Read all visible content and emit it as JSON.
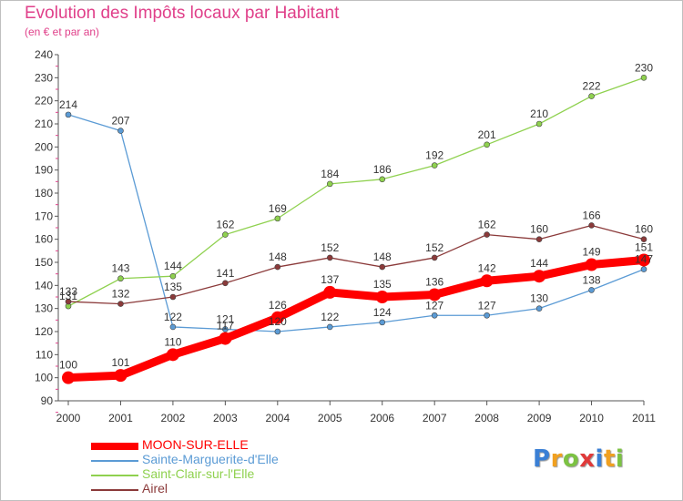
{
  "chart_data": {
    "type": "line",
    "title": "Evolution des Impôts locaux par Habitant",
    "subtitle": "(en € et par an)",
    "x": [
      "2000",
      "2001",
      "2002",
      "2003",
      "2004",
      "2005",
      "2006",
      "2007",
      "2008",
      "2009",
      "2010",
      "2011"
    ],
    "ylim": [
      90,
      240
    ],
    "yticks": [
      90,
      100,
      110,
      120,
      130,
      140,
      150,
      160,
      170,
      180,
      190,
      200,
      210,
      220,
      230,
      240
    ],
    "grid": false,
    "legend_position": "bottom-left",
    "series": [
      {
        "name": "MOON-SUR-ELLE",
        "color": "#ff0000",
        "values": [
          100,
          101,
          110,
          117,
          126,
          137,
          135,
          136,
          142,
          144,
          149,
          151
        ],
        "labels": [
          "100",
          "101",
          "110",
          "117",
          "126",
          "137",
          "135",
          "136",
          "142",
          "144",
          "149",
          "151"
        ]
      },
      {
        "name": "Sainte-Marguerite-d'Elle",
        "color": "#5b9bd5",
        "values": [
          214,
          207,
          122,
          121,
          120,
          122,
          124,
          127,
          127,
          130,
          138,
          147
        ],
        "labels": [
          "214",
          "207",
          "122",
          "121",
          "120",
          "122",
          "124",
          "127",
          "127",
          "130",
          "138",
          "147"
        ]
      },
      {
        "name": "Saint-Clair-sur-l'Elle",
        "color": "#8fd14f",
        "values": [
          131,
          143,
          144,
          162,
          169,
          184,
          186,
          192,
          201,
          210,
          222,
          230
        ],
        "labels": [
          "131",
          "143",
          "144",
          "162",
          "169",
          "184",
          "186",
          "192",
          "201",
          "210",
          "222",
          "230"
        ]
      },
      {
        "name": "Airel",
        "color": "#8b3a3a",
        "values": [
          133,
          132,
          135,
          141,
          148,
          152,
          148,
          152,
          162,
          160,
          166,
          160
        ],
        "labels": [
          "133",
          "132",
          "135",
          "141",
          "148",
          "152",
          "148",
          "152",
          "162",
          "160",
          "166",
          "160"
        ]
      }
    ]
  },
  "brand": {
    "letters": [
      "P",
      "r",
      "o",
      "x",
      "i",
      "t",
      "i"
    ],
    "colors": [
      "#3a7fd5",
      "#f0a020",
      "#7cc243",
      "#e03a3a",
      "#3a7fd5",
      "#f0a020",
      "#7cc243"
    ]
  }
}
